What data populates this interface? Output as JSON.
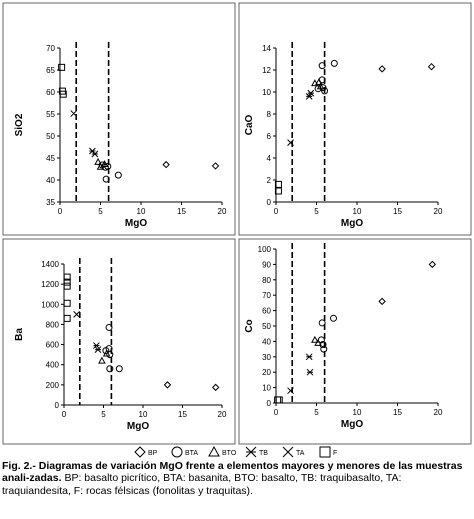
{
  "chart_data": [
    {
      "type": "scatter",
      "title": "",
      "xlabel": "MgO",
      "ylabel": "SiO2",
      "xlim": [
        0,
        20
      ],
      "ylim": [
        35,
        70
      ],
      "xticks": [
        "0",
        "5",
        "10",
        "15",
        "20"
      ],
      "yticks": [
        "35",
        "40",
        "45",
        "50",
        "55",
        "60",
        "65",
        "70"
      ],
      "dashed_lines_x": [
        2,
        6
      ],
      "series": [
        {
          "name": "BP",
          "marker": "diamond",
          "points": [
            [
              13.1,
              43.5
            ],
            [
              19.2,
              43.2
            ]
          ]
        },
        {
          "name": "BTA",
          "marker": "circle",
          "points": [
            [
              5.2,
              43.4
            ],
            [
              5.6,
              42.9
            ],
            [
              5.9,
              43.1
            ],
            [
              5.7,
              40.2
            ],
            [
              7.2,
              41.1
            ]
          ]
        },
        {
          "name": "BTO",
          "marker": "triangle",
          "points": [
            [
              4.7,
              44.1
            ],
            [
              5.0,
              43.0
            ],
            [
              5.5,
              43.6
            ]
          ]
        },
        {
          "name": "TB",
          "marker": "asterisk",
          "points": [
            [
              4.0,
              46.6
            ],
            [
              4.3,
              45.9
            ]
          ]
        },
        {
          "name": "TA",
          "marker": "x",
          "points": [
            [
              1.7,
              55.1
            ]
          ]
        },
        {
          "name": "F",
          "marker": "square",
          "points": [
            [
              0.2,
              65.6
            ],
            [
              0.3,
              60.2
            ],
            [
              0.4,
              59.5
            ]
          ]
        }
      ]
    },
    {
      "type": "scatter",
      "title": "",
      "xlabel": "MgO",
      "ylabel": "CaO",
      "xlim": [
        0,
        20
      ],
      "ylim": [
        0,
        14
      ],
      "xticks": [
        "0",
        "5",
        "10",
        "15",
        "20"
      ],
      "yticks": [
        "0",
        "2",
        "4",
        "6",
        "8",
        "10",
        "12",
        "14"
      ],
      "dashed_lines_x": [
        2,
        6
      ],
      "series": [
        {
          "name": "BP",
          "marker": "diamond",
          "points": [
            [
              13.1,
              12.1
            ],
            [
              19.2,
              12.3
            ]
          ]
        },
        {
          "name": "BTA",
          "marker": "circle",
          "points": [
            [
              5.7,
              12.4
            ],
            [
              5.7,
              11.1
            ],
            [
              5.2,
              10.3
            ],
            [
              5.8,
              10.4
            ],
            [
              6.0,
              10.1
            ],
            [
              7.2,
              12.6
            ]
          ]
        },
        {
          "name": "BTO",
          "marker": "triangle",
          "points": [
            [
              4.8,
              10.8
            ],
            [
              5.3,
              10.9
            ],
            [
              5.5,
              10.5
            ]
          ]
        },
        {
          "name": "TB",
          "marker": "asterisk",
          "points": [
            [
              4.1,
              9.6
            ],
            [
              4.3,
              9.9
            ]
          ]
        },
        {
          "name": "TA",
          "marker": "x",
          "points": [
            [
              1.8,
              5.4
            ]
          ]
        },
        {
          "name": "F",
          "marker": "square",
          "points": [
            [
              0.3,
              1.6
            ],
            [
              0.3,
              1.0
            ]
          ]
        }
      ]
    },
    {
      "type": "scatter",
      "title": "",
      "xlabel": "MgO",
      "ylabel": "Ba",
      "xlim": [
        0,
        20
      ],
      "ylim": [
        0,
        1400
      ],
      "xticks": [
        "0",
        "5",
        "10",
        "15",
        "20"
      ],
      "yticks": [
        "0",
        "200",
        "400",
        "600",
        "800",
        "1000",
        "1200",
        "1400"
      ],
      "dashed_lines_x": [
        2,
        6
      ],
      "series": [
        {
          "name": "BP",
          "marker": "diamond",
          "points": [
            [
              13.1,
              200
            ],
            [
              19.2,
              175
            ]
          ]
        },
        {
          "name": "BTA",
          "marker": "circle",
          "points": [
            [
              5.7,
              770
            ],
            [
              5.3,
              540
            ],
            [
              5.7,
              560
            ],
            [
              5.8,
              500
            ],
            [
              5.8,
              360
            ],
            [
              7.0,
              360
            ]
          ]
        },
        {
          "name": "BTO",
          "marker": "triangle",
          "points": [
            [
              4.8,
              440
            ],
            [
              5.4,
              510
            ]
          ]
        },
        {
          "name": "TB",
          "marker": "asterisk",
          "points": [
            [
              4.1,
              590
            ],
            [
              4.3,
              550
            ]
          ]
        },
        {
          "name": "TA",
          "marker": "x",
          "points": [
            [
              1.6,
              900
            ]
          ]
        },
        {
          "name": "F",
          "marker": "square",
          "points": [
            [
              0.4,
              1270
            ],
            [
              0.4,
              1220
            ],
            [
              0.4,
              1180
            ],
            [
              0.4,
              1010
            ],
            [
              0.4,
              860
            ]
          ]
        }
      ]
    },
    {
      "type": "scatter",
      "title": "",
      "xlabel": "MgO",
      "ylabel": "Co",
      "xlim": [
        0,
        20
      ],
      "ylim": [
        0,
        100
      ],
      "xticks": [
        "0",
        "5",
        "10",
        "15",
        "20"
      ],
      "yticks": [
        "0",
        "10",
        "20",
        "30",
        "40",
        "50",
        "60",
        "70",
        "80",
        "90",
        "100"
      ],
      "dashed_lines_x": [
        2,
        6
      ],
      "series": [
        {
          "name": "BP",
          "marker": "diamond",
          "points": [
            [
              13.1,
              66
            ],
            [
              19.3,
              90
            ]
          ]
        },
        {
          "name": "BTA",
          "marker": "circle",
          "points": [
            [
              5.7,
              52
            ],
            [
              5.6,
              41
            ],
            [
              5.8,
              38
            ],
            [
              5.9,
              35
            ],
            [
              7.1,
              55
            ]
          ]
        },
        {
          "name": "BTO",
          "marker": "triangle",
          "points": [
            [
              4.8,
              41
            ],
            [
              5.2,
              39
            ]
          ]
        },
        {
          "name": "TB",
          "marker": "asterisk",
          "points": [
            [
              4.1,
              30
            ],
            [
              4.2,
              20
            ]
          ]
        },
        {
          "name": "TA",
          "marker": "x",
          "points": [
            [
              1.8,
              8
            ]
          ]
        },
        {
          "name": "F",
          "marker": "square",
          "points": [
            [
              0.2,
              2
            ],
            [
              0.4,
              2
            ]
          ]
        }
      ]
    }
  ],
  "legend": {
    "placement": "bottom-center",
    "items": [
      {
        "marker": "diamond",
        "label": "BP"
      },
      {
        "marker": "circle",
        "label": "BTA"
      },
      {
        "marker": "triangle",
        "label": "BTO"
      },
      {
        "marker": "asterisk",
        "label": "TB"
      },
      {
        "marker": "x",
        "label": "TA"
      },
      {
        "marker": "square",
        "label": "F"
      }
    ]
  },
  "caption": {
    "label": "Fig. 2.- Diagramas de variación MgO frente a elementos mayores y menores de las muestras anali-zadas.",
    "text": "BP: basalto picrítico, BTA: basanita, BTO: basalto, TB: traquibasalto, TA: traquiandesita, F: rocas félsicas (fonolitas y traquitas)."
  }
}
